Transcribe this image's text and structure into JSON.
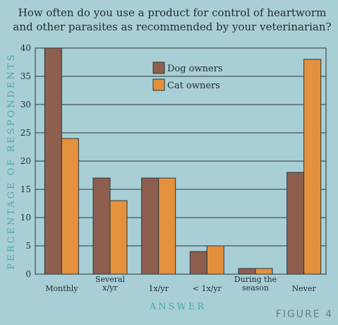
{
  "figure_label": "FIGURE 4",
  "chart_data": {
    "type": "bar",
    "title_lines": [
      "How often do you use a product for control of heartworm",
      "and other parasites as recommended by your veterinarian?"
    ],
    "xlabel": "ANSWER",
    "ylabel": "PERCENTAGE OF RESPONDENTS",
    "ylim": [
      0,
      40
    ],
    "yticks": [
      0,
      5,
      10,
      15,
      20,
      25,
      30,
      35,
      40
    ],
    "grid": true,
    "legend_position": "top-center",
    "categories": [
      [
        "Monthly"
      ],
      [
        "Several",
        "x/yr"
      ],
      [
        "1x/yr"
      ],
      [
        "< 1x/yr"
      ],
      [
        "During the",
        "season"
      ],
      [
        "Never"
      ]
    ],
    "series": [
      {
        "name": "Dog owners",
        "color": "#8e5f4e",
        "values": [
          40,
          17,
          17,
          4,
          1,
          18
        ]
      },
      {
        "name": "Cat owners",
        "color": "#e4913e",
        "values": [
          24,
          13,
          17,
          5,
          1,
          38
        ]
      }
    ]
  }
}
